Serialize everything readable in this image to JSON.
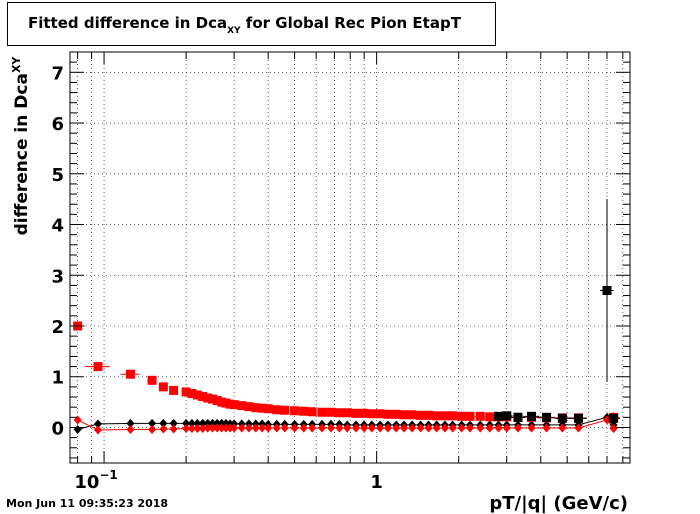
{
  "title": {
    "prefix": "Fitted difference in Dca",
    "subscript": "XY",
    "suffix": " for Global Rec Pion EtapT"
  },
  "timestamp": "Mon Jun 11 09:35:23 2018",
  "chart_data": {
    "type": "scatter",
    "title": "Fitted difference in Dca_XY for Global Rec Pion EtapT",
    "xlabel": "pT/|q| (GeV/c)",
    "ylabel_prefix": "difference in Dca",
    "ylabel_subscript": "XY",
    "xscale": "log",
    "xlim": [
      0.075,
      8.5
    ],
    "ylim": [
      -0.7,
      7.4
    ],
    "xtick_labels": [
      {
        "x": 0.1,
        "base": "10",
        "exp": "−1"
      },
      {
        "x": 1,
        "base": "1",
        "exp": ""
      }
    ],
    "yticks": [
      0,
      1,
      2,
      3,
      4,
      5,
      6,
      7
    ],
    "grid": true,
    "series": [
      {
        "color": "#ff0000",
        "marker": "square",
        "x": [
          0.08,
          0.095,
          0.125,
          0.15,
          0.165,
          0.18,
          0.2,
          0.21,
          0.22,
          0.23,
          0.24,
          0.25,
          0.26,
          0.27,
          0.28,
          0.29,
          0.3,
          0.32,
          0.34,
          0.36,
          0.38,
          0.4,
          0.43,
          0.46,
          0.5,
          0.54,
          0.58,
          0.63,
          0.68,
          0.73,
          0.78,
          0.84,
          0.9,
          0.96,
          1.03,
          1.1,
          1.18,
          1.26,
          1.35,
          1.45,
          1.55,
          1.66,
          1.78,
          1.9,
          2.05,
          2.2,
          2.4,
          2.6,
          2.8,
          3.0,
          3.3,
          3.7,
          4.2,
          4.8,
          5.5,
          7.0,
          7.4
        ],
        "y": [
          2.0,
          1.2,
          1.05,
          0.93,
          0.8,
          0.73,
          0.7,
          0.67,
          0.64,
          0.61,
          0.58,
          0.56,
          0.53,
          0.5,
          0.48,
          0.46,
          0.45,
          0.43,
          0.41,
          0.39,
          0.38,
          0.37,
          0.35,
          0.34,
          0.33,
          0.32,
          0.31,
          0.3,
          0.3,
          0.29,
          0.29,
          0.28,
          0.28,
          0.27,
          0.27,
          0.26,
          0.26,
          0.25,
          0.25,
          0.24,
          0.24,
          0.23,
          0.23,
          0.23,
          0.22,
          0.22,
          0.22,
          0.21,
          0.21,
          0.21,
          0.2,
          0.2,
          0.19,
          0.19,
          0.19,
          2.7,
          0.2
        ],
        "xerr": [
          0.005,
          0.01,
          0.01,
          0.005,
          0.005,
          0.005,
          0.005,
          0.005,
          0.005,
          0.005,
          0.005,
          0.005,
          0.005,
          0.005,
          0.005,
          0.005,
          0.01,
          0.01,
          0.01,
          0.01,
          0.01,
          0.01,
          0.015,
          0.015,
          0.02,
          0.02,
          0.02,
          0.025,
          0.025,
          0.025,
          0.03,
          0.03,
          0.03,
          0.03,
          0.035,
          0.04,
          0.04,
          0.045,
          0.05,
          0.05,
          0.05,
          0.06,
          0.06,
          0.07,
          0.08,
          0.1,
          0.1,
          0.1,
          0.1,
          0.15,
          0.2,
          0.25,
          0.3,
          0.3,
          0.4,
          0.4,
          0.4
        ],
        "yerr": [
          0.02,
          0.02,
          0.02,
          0.02,
          0.02,
          0.02,
          0.02,
          0.02,
          0.02,
          0.02,
          0.02,
          0.02,
          0.02,
          0.02,
          0.02,
          0.02,
          0.02,
          0.02,
          0.02,
          0.02,
          0.02,
          0.02,
          0.02,
          0.02,
          0.02,
          0.02,
          0.02,
          0.02,
          0.02,
          0.02,
          0.02,
          0.02,
          0.02,
          0.02,
          0.02,
          0.02,
          0.02,
          0.02,
          0.02,
          0.02,
          0.02,
          0.02,
          0.02,
          0.02,
          0.02,
          0.02,
          0.03,
          0.03,
          0.03,
          0.03,
          0.04,
          0.04,
          0.05,
          0.06,
          0.08,
          1.8,
          0.1
        ]
      },
      {
        "color": "#000000",
        "marker": "square",
        "x": [
          2.8,
          3.0,
          3.3,
          3.7,
          4.2,
          4.8,
          5.5,
          7.0,
          7.4
        ],
        "y": [
          0.22,
          0.23,
          0.2,
          0.22,
          0.2,
          0.18,
          0.18,
          2.7,
          0.18
        ],
        "xerr": [
          0.1,
          0.15,
          0.2,
          0.25,
          0.3,
          0.3,
          0.4,
          0.4,
          0.4
        ],
        "yerr": [
          0.03,
          0.03,
          0.04,
          0.04,
          0.05,
          0.06,
          0.08,
          1.8,
          0.1
        ]
      },
      {
        "color": "#000000",
        "marker": "diamond",
        "x": [
          0.08,
          0.095,
          0.125,
          0.15,
          0.165,
          0.18,
          0.2,
          0.21,
          0.22,
          0.23,
          0.24,
          0.25,
          0.26,
          0.27,
          0.28,
          0.29,
          0.3,
          0.32,
          0.34,
          0.36,
          0.38,
          0.4,
          0.43,
          0.46,
          0.5,
          0.54,
          0.58,
          0.63,
          0.68,
          0.73,
          0.78,
          0.84,
          0.9,
          0.96,
          1.03,
          1.1,
          1.18,
          1.26,
          1.35,
          1.45,
          1.55,
          1.66,
          1.78,
          1.9,
          2.05,
          2.2,
          2.4,
          2.6,
          2.8,
          3.0,
          3.3,
          3.7,
          4.2,
          4.8,
          5.5,
          7.0,
          7.4
        ],
        "y": [
          -0.04,
          0.07,
          0.08,
          0.08,
          0.08,
          0.08,
          0.08,
          0.08,
          0.08,
          0.08,
          0.08,
          0.08,
          0.08,
          0.08,
          0.08,
          0.07,
          0.07,
          0.07,
          0.07,
          0.07,
          0.07,
          0.06,
          0.06,
          0.06,
          0.06,
          0.06,
          0.06,
          0.06,
          0.06,
          0.06,
          0.05,
          0.05,
          0.05,
          0.05,
          0.05,
          0.05,
          0.05,
          0.05,
          0.05,
          0.05,
          0.05,
          0.05,
          0.05,
          0.05,
          0.05,
          0.05,
          0.05,
          0.05,
          0.05,
          0.05,
          0.05,
          0.05,
          0.05,
          0.05,
          0.05,
          0.2,
          0.05
        ],
        "fit": true
      },
      {
        "color": "#ff0000",
        "marker": "diamond",
        "x": [
          0.08,
          0.095,
          0.125,
          0.15,
          0.165,
          0.18,
          0.2,
          0.21,
          0.22,
          0.23,
          0.24,
          0.25,
          0.26,
          0.27,
          0.28,
          0.29,
          0.3,
          0.32,
          0.34,
          0.36,
          0.38,
          0.4,
          0.43,
          0.46,
          0.5,
          0.54,
          0.58,
          0.63,
          0.68,
          0.73,
          0.78,
          0.84,
          0.9,
          0.96,
          1.03,
          1.1,
          1.18,
          1.26,
          1.35,
          1.45,
          1.55,
          1.66,
          1.78,
          1.9,
          2.05,
          2.2,
          2.4,
          2.6,
          2.8,
          3.0,
          3.3,
          3.7,
          4.2,
          4.8,
          5.5,
          7.0,
          7.4
        ],
        "y": [
          0.15,
          -0.05,
          -0.04,
          -0.04,
          -0.03,
          -0.03,
          -0.02,
          -0.02,
          -0.02,
          -0.02,
          -0.01,
          -0.01,
          -0.01,
          -0.01,
          -0.01,
          -0.01,
          -0.01,
          -0.01,
          -0.01,
          -0.01,
          -0.01,
          -0.01,
          -0.01,
          -0.01,
          -0.01,
          -0.01,
          -0.01,
          -0.01,
          -0.01,
          -0.01,
          -0.01,
          -0.01,
          -0.01,
          -0.01,
          -0.01,
          -0.01,
          -0.01,
          -0.01,
          -0.01,
          -0.01,
          -0.01,
          -0.01,
          -0.01,
          -0.01,
          -0.01,
          -0.01,
          -0.01,
          -0.01,
          -0.01,
          -0.01,
          -0.01,
          -0.01,
          -0.01,
          -0.01,
          -0.01,
          0.15,
          -0.02
        ],
        "fit": true
      }
    ]
  }
}
